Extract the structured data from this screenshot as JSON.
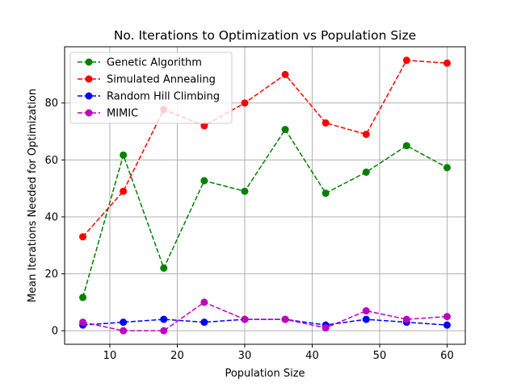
{
  "chart_data": {
    "type": "line",
    "title": "No. Iterations to Optimization vs Population Size",
    "xlabel": "Population Size",
    "ylabel": "Mean Iterations Needed for Optimization",
    "xlim": [
      3.3,
      62.7
    ],
    "ylim": [
      -4.75,
      99.75
    ],
    "xticks": [
      10,
      20,
      30,
      40,
      50,
      60
    ],
    "yticks": [
      0,
      20,
      40,
      60,
      80
    ],
    "grid": true,
    "legend_position": "top-left",
    "x": [
      6,
      12,
      18,
      24,
      30,
      36,
      42,
      48,
      54,
      60
    ],
    "series": [
      {
        "name": "Genetic Algorithm",
        "color": "#008000",
        "values": [
          11.7,
          61.7,
          22.0,
          52.7,
          49.0,
          70.7,
          48.3,
          55.7,
          65.0,
          57.3
        ]
      },
      {
        "name": "Simulated Annealing",
        "color": "#ff0000",
        "values": [
          33.0,
          49.0,
          77.7,
          72.0,
          80.0,
          90.0,
          73.0,
          69.0,
          95.0,
          94.0
        ]
      },
      {
        "name": "Random Hill Climbing",
        "color": "#0000ff",
        "values": [
          2.0,
          3.0,
          4.0,
          3.0,
          4.0,
          4.0,
          2.0,
          4.0,
          3.0,
          2.0
        ]
      },
      {
        "name": "MIMIC",
        "color": "#bf00bf",
        "values": [
          3.0,
          0.0,
          0.0,
          10.0,
          4.0,
          4.0,
          1.0,
          7.0,
          4.0,
          5.0
        ]
      }
    ]
  }
}
